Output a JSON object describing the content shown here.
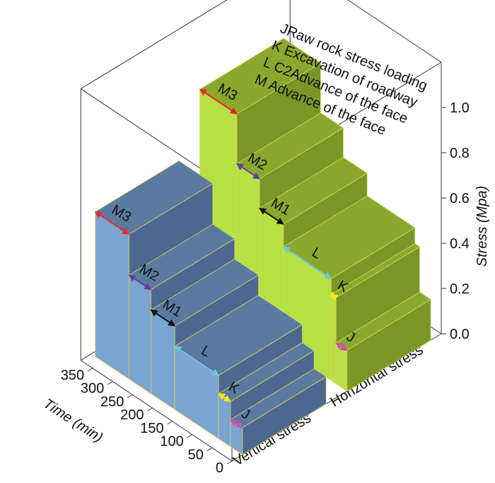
{
  "chart_data": {
    "type": "step3d",
    "ylabel": "Time (min)",
    "zlabel": "Stress (Mpa)",
    "ylim": [
      0,
      380
    ],
    "yticks": [
      0,
      50,
      100,
      150,
      200,
      250,
      300,
      350
    ],
    "zlim": [
      0,
      1.2
    ],
    "zticks": [
      {
        "value": 0,
        "label": "0.0"
      },
      {
        "value": 0.2,
        "label": "0.2"
      },
      {
        "value": 0.4,
        "label": "0.4"
      },
      {
        "value": 0.6,
        "label": "0.6"
      },
      {
        "value": 0.8,
        "label": "0.8"
      },
      {
        "value": 1.0,
        "label": "1.0"
      }
    ],
    "stage_labels": [
      "J",
      "K",
      "L",
      "M1",
      "M2",
      "M3"
    ],
    "stage_colors": [
      "#d04fa8",
      "#f2e61c",
      "#6cc6dc",
      "#111111",
      "#6a3a9c",
      "#e8282a"
    ],
    "series": [
      {
        "name": "Vertical stress",
        "colors": [
          "#7ba4d0",
          "#5b7aa0",
          "#4d6890"
        ],
        "bins": [
          0,
          30,
          60,
          170,
          230,
          285,
          370
        ],
        "values": [
          0.12,
          0.2,
          0.28,
          0.37,
          0.46,
          0.64
        ]
      },
      {
        "name": "Horizontal stress",
        "colors": [
          "#b6e044",
          "#8aa82e",
          "#7a9626"
        ],
        "bins": [
          0,
          28,
          40,
          160,
          220,
          277,
          370
        ],
        "values": [
          0.18,
          0.38,
          0.45,
          0.55,
          0.68,
          0.9
        ]
      }
    ],
    "legend": [
      {
        "label": "JRaw rock stress loading",
        "color": "#f07a3c"
      },
      {
        "label": "K Excavation of roadway",
        "color": "#e8b02c"
      },
      {
        "label": "L C2Advance of the face",
        "color": "#5cc4d8"
      },
      {
        "label": "M Advance of the face",
        "color": "#e82a2a"
      }
    ]
  }
}
